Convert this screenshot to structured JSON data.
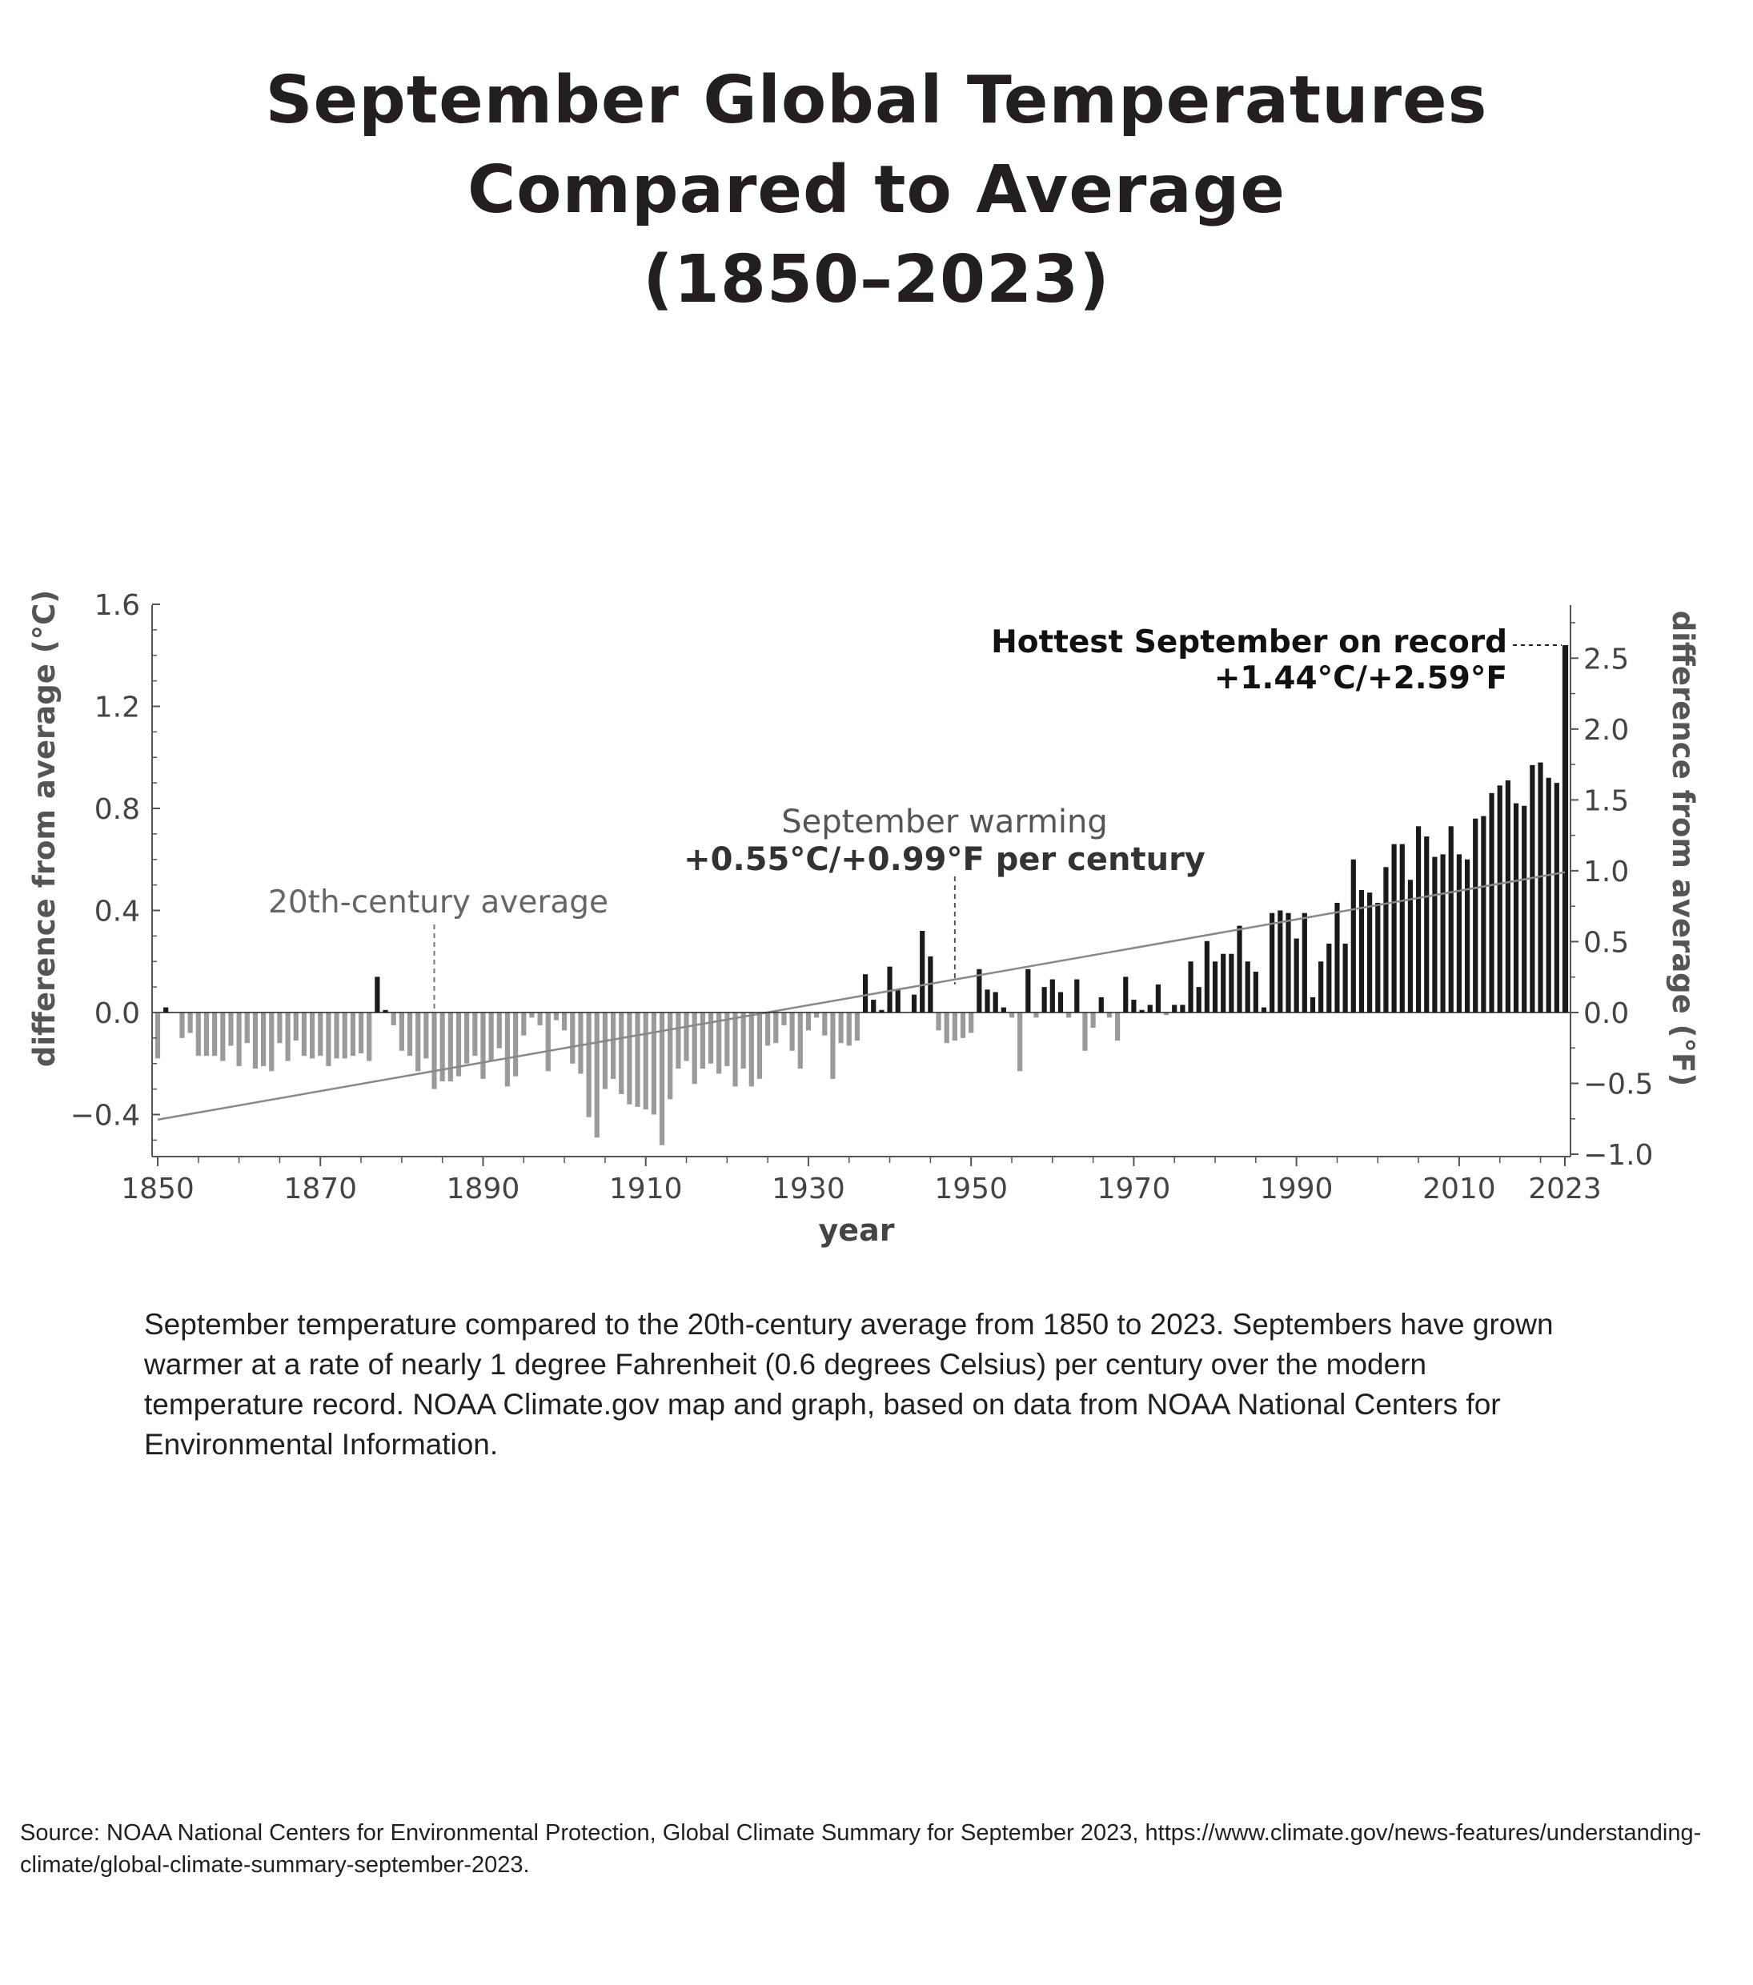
{
  "title": {
    "line1": "September Global Temperatures",
    "line2": "Compared to Average",
    "line3": "(1850–2023)"
  },
  "caption": "September temperature compared to the 20th-century average from 1850 to 2023. Septembers have grown warmer at a rate of nearly 1 degree Fahrenheit (0.6 degrees Celsius) per century over the modern temperature record. NOAA Climate.gov map and graph, based on data from NOAA National Centers for Environmental Information.",
  "source": "Source: NOAA National Centers for Environmental Protection, Global Climate Summary for September 2023, https://www.climate.gov/news-features/understanding-climate/global-climate-summary-september-2023.",
  "colors": {
    "positive": "#1a1a1a",
    "negative": "#9a9a9a",
    "trend": "#888888",
    "axis": "#555555"
  },
  "chart_data": {
    "type": "bar",
    "xlabel": "year",
    "ylabel": "difference from average (°C)",
    "ylabel_right": "difference from average (°F)",
    "ylim": [
      -0.58,
      1.6
    ],
    "yticks": [
      "-0.4",
      "0.0",
      "0.4",
      "0.8",
      "1.2",
      "1.6"
    ],
    "yticks_right": [
      "-1.0",
      "-0.5",
      "0.0",
      "0.5",
      "1.0",
      "1.5",
      "2.0",
      "2.5"
    ],
    "xticks": [
      "1850",
      "1870",
      "1890",
      "1910",
      "1930",
      "1950",
      "1970",
      "1990",
      "2010",
      "2023"
    ],
    "grid": false,
    "start_year": 1850,
    "end_year": 2023,
    "values": [
      -0.18,
      0.02,
      0,
      -0.1,
      -0.08,
      -0.17,
      -0.17,
      -0.17,
      -0.19,
      -0.13,
      -0.21,
      -0.12,
      -0.22,
      -0.21,
      -0.23,
      -0.12,
      -0.19,
      -0.11,
      -0.17,
      -0.18,
      -0.17,
      -0.21,
      -0.18,
      -0.18,
      -0.17,
      -0.16,
      -0.19,
      0.14,
      0.01,
      -0.05,
      -0.15,
      -0.17,
      -0.23,
      -0.18,
      -0.3,
      -0.27,
      -0.27,
      -0.25,
      -0.2,
      -0.17,
      -0.26,
      -0.19,
      -0.14,
      -0.29,
      -0.25,
      -0.09,
      -0.02,
      -0.05,
      -0.23,
      -0.03,
      -0.07,
      -0.2,
      -0.24,
      -0.41,
      -0.49,
      -0.3,
      -0.26,
      -0.32,
      -0.36,
      -0.37,
      -0.38,
      -0.4,
      -0.52,
      -0.34,
      -0.22,
      -0.19,
      -0.28,
      -0.22,
      -0.2,
      -0.24,
      -0.21,
      -0.29,
      -0.22,
      -0.29,
      -0.26,
      -0.13,
      -0.12,
      -0.05,
      -0.15,
      -0.22,
      -0.07,
      -0.02,
      -0.09,
      -0.26,
      -0.12,
      -0.13,
      -0.11,
      0.15,
      0.05,
      0.01,
      0.18,
      0.09,
      0,
      0.07,
      0.32,
      0.22,
      -0.07,
      -0.12,
      -0.11,
      -0.1,
      -0.08,
      0.17,
      0.09,
      0.08,
      0.02,
      -0.02,
      -0.23,
      0.17,
      -0.02,
      0.1,
      0.13,
      0.08,
      -0.02,
      0.13,
      -0.15,
      -0.06,
      0.06,
      -0.02,
      -0.11,
      0.14,
      0.05,
      0.01,
      0.03,
      0.11,
      -0.01,
      0.03,
      0.03,
      0.2,
      0.1,
      0.28,
      0.2,
      0.23,
      0.23,
      0.34,
      0.2,
      0.16,
      0.02,
      0.39,
      0.4,
      0.39,
      0.29,
      0.39,
      0.06,
      0.2,
      0.27,
      0.43,
      0.27,
      0.6,
      0.48,
      0.47,
      0.43,
      0.57,
      0.66,
      0.66,
      0.52,
      0.73,
      0.69,
      0.61,
      0.62,
      0.73,
      0.62,
      0.6,
      0.76,
      0.77,
      0.86,
      0.89,
      0.91,
      0.82,
      0.81,
      0.97,
      0.98,
      0.92,
      0.9,
      1.44
    ],
    "trend": {
      "label_line1": "September warming",
      "label_line2": "+0.55°C/+0.99°F per century",
      "start_value": -0.42,
      "end_value": 0.55
    },
    "annotations": {
      "average_label": "20th-century average",
      "average_year": 1884,
      "warming_year": 1948,
      "record_line1": "Hottest September on record",
      "record_line2": "+1.44°C/+2.59°F"
    }
  }
}
